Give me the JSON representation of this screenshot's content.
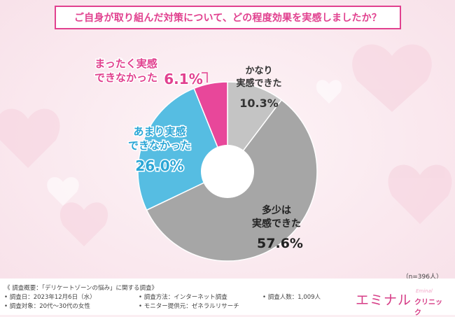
{
  "title": "ご自身が取り組んだ対策について、どの程度効果を実感しましたか？",
  "colors": {
    "accent": "#e1418f",
    "gray_light": "#c4c4c4",
    "gray_dark": "#a6a6a6",
    "blue": "#56bde2",
    "pink": "#e8479a"
  },
  "chart_data": {
    "type": "pie",
    "donut": true,
    "start": "top, clockwise",
    "slices": [
      {
        "label_lines": [
          "かなり",
          "実感できた"
        ],
        "value": 10.3,
        "value_text": "10.3%",
        "color": "#c4c4c4",
        "text_color": "#333333"
      },
      {
        "label_lines": [
          "多少は",
          "実感できた"
        ],
        "value": 57.6,
        "value_text": "57.6%",
        "color": "#a6a6a6",
        "text_color": "#222222"
      },
      {
        "label_lines": [
          "あまり実感",
          "できなかった"
        ],
        "value": 26.0,
        "value_text": "26.0%",
        "color": "#56bde2",
        "text_color": "#2aa6d6"
      },
      {
        "label_lines": [
          "まったく実感",
          "できなかった"
        ],
        "value": 6.1,
        "value_text": "6.1%",
        "color": "#e8479a",
        "text_color": "#e1418f"
      }
    ],
    "sample": "（n=396人）"
  },
  "footer": {
    "overview": "《 調査概要：「デリケートゾーンの悩み」に関する調査》",
    "date": "• 調査日：2023年12月6日（水）",
    "target": "• 調査対象：20代〜30代の女性",
    "method": "• 調査方法：インターネット調査",
    "provider": "• モニター提供元：ゼネラルリサーチ",
    "count": "• 調査人数：1,009人"
  },
  "logo": {
    "main": "エミナル",
    "sub": "クリニック",
    "small": "Eminal"
  }
}
